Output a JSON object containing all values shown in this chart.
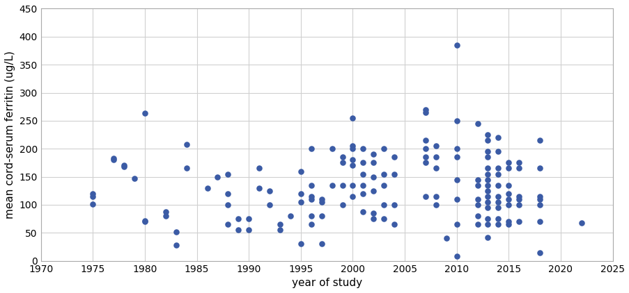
{
  "points": [
    [
      1975,
      120
    ],
    [
      1975,
      115
    ],
    [
      1975,
      101
    ],
    [
      1977,
      183
    ],
    [
      1977,
      180
    ],
    [
      1978,
      170
    ],
    [
      1978,
      168
    ],
    [
      1979,
      147
    ],
    [
      1980,
      263
    ],
    [
      1980,
      72
    ],
    [
      1980,
      70
    ],
    [
      1982,
      80
    ],
    [
      1982,
      88
    ],
    [
      1983,
      28
    ],
    [
      1983,
      52
    ],
    [
      1984,
      208
    ],
    [
      1984,
      165
    ],
    [
      1986,
      130
    ],
    [
      1987,
      150
    ],
    [
      1988,
      120
    ],
    [
      1988,
      100
    ],
    [
      1988,
      65
    ],
    [
      1988,
      155
    ],
    [
      1989,
      75
    ],
    [
      1989,
      55
    ],
    [
      1990,
      55
    ],
    [
      1990,
      75
    ],
    [
      1991,
      165
    ],
    [
      1991,
      130
    ],
    [
      1992,
      125
    ],
    [
      1992,
      100
    ],
    [
      1993,
      65
    ],
    [
      1993,
      55
    ],
    [
      1994,
      80
    ],
    [
      1995,
      160
    ],
    [
      1995,
      120
    ],
    [
      1995,
      105
    ],
    [
      1995,
      30
    ],
    [
      1996,
      200
    ],
    [
      1996,
      135
    ],
    [
      1996,
      115
    ],
    [
      1996,
      110
    ],
    [
      1996,
      80
    ],
    [
      1996,
      65
    ],
    [
      1997,
      110
    ],
    [
      1997,
      105
    ],
    [
      1997,
      80
    ],
    [
      1997,
      30
    ],
    [
      1998,
      200
    ],
    [
      1998,
      135
    ],
    [
      1999,
      185
    ],
    [
      1999,
      175
    ],
    [
      1999,
      135
    ],
    [
      1999,
      100
    ],
    [
      2000,
      255
    ],
    [
      2000,
      205
    ],
    [
      2000,
      200
    ],
    [
      2000,
      180
    ],
    [
      2000,
      170
    ],
    [
      2000,
      135
    ],
    [
      2000,
      115
    ],
    [
      2001,
      200
    ],
    [
      2001,
      175
    ],
    [
      2001,
      155
    ],
    [
      2001,
      135
    ],
    [
      2001,
      120
    ],
    [
      2001,
      88
    ],
    [
      2002,
      190
    ],
    [
      2002,
      175
    ],
    [
      2002,
      150
    ],
    [
      2002,
      125
    ],
    [
      2002,
      85
    ],
    [
      2002,
      75
    ],
    [
      2003,
      200
    ],
    [
      2003,
      155
    ],
    [
      2003,
      135
    ],
    [
      2003,
      100
    ],
    [
      2003,
      75
    ],
    [
      2004,
      185
    ],
    [
      2004,
      155
    ],
    [
      2004,
      100
    ],
    [
      2004,
      65
    ],
    [
      2007,
      270
    ],
    [
      2007,
      265
    ],
    [
      2007,
      215
    ],
    [
      2007,
      200
    ],
    [
      2007,
      185
    ],
    [
      2007,
      175
    ],
    [
      2007,
      115
    ],
    [
      2008,
      205
    ],
    [
      2008,
      185
    ],
    [
      2008,
      165
    ],
    [
      2008,
      115
    ],
    [
      2008,
      100
    ],
    [
      2009,
      40
    ],
    [
      2010,
      385
    ],
    [
      2010,
      250
    ],
    [
      2010,
      200
    ],
    [
      2010,
      185
    ],
    [
      2010,
      145
    ],
    [
      2010,
      110
    ],
    [
      2010,
      65
    ],
    [
      2010,
      8
    ],
    [
      2012,
      245
    ],
    [
      2012,
      145
    ],
    [
      2012,
      135
    ],
    [
      2012,
      110
    ],
    [
      2012,
      100
    ],
    [
      2012,
      80
    ],
    [
      2012,
      65
    ],
    [
      2013,
      225
    ],
    [
      2013,
      215
    ],
    [
      2013,
      195
    ],
    [
      2013,
      185
    ],
    [
      2013,
      165
    ],
    [
      2013,
      155
    ],
    [
      2013,
      145
    ],
    [
      2013,
      135
    ],
    [
      2013,
      125
    ],
    [
      2013,
      115
    ],
    [
      2013,
      105
    ],
    [
      2013,
      95
    ],
    [
      2013,
      75
    ],
    [
      2013,
      65
    ],
    [
      2013,
      42
    ],
    [
      2014,
      220
    ],
    [
      2014,
      195
    ],
    [
      2014,
      165
    ],
    [
      2014,
      155
    ],
    [
      2014,
      135
    ],
    [
      2014,
      115
    ],
    [
      2014,
      105
    ],
    [
      2014,
      95
    ],
    [
      2014,
      75
    ],
    [
      2014,
      65
    ],
    [
      2015,
      175
    ],
    [
      2015,
      165
    ],
    [
      2015,
      135
    ],
    [
      2015,
      120
    ],
    [
      2015,
      110
    ],
    [
      2015,
      100
    ],
    [
      2015,
      70
    ],
    [
      2015,
      65
    ],
    [
      2016,
      175
    ],
    [
      2016,
      165
    ],
    [
      2016,
      115
    ],
    [
      2016,
      110
    ],
    [
      2016,
      100
    ],
    [
      2016,
      70
    ],
    [
      2018,
      215
    ],
    [
      2018,
      165
    ],
    [
      2018,
      115
    ],
    [
      2018,
      110
    ],
    [
      2018,
      100
    ],
    [
      2018,
      70
    ],
    [
      2018,
      14
    ],
    [
      2022,
      68
    ]
  ],
  "color": "#3B5BA5",
  "marker_size": 38,
  "xlabel": "year of study",
  "ylabel": "mean cord-serum ferritin (ug/L)",
  "xlim": [
    1970,
    2025
  ],
  "ylim": [
    0,
    450
  ],
  "xticks": [
    1970,
    1975,
    1980,
    1985,
    1990,
    1995,
    2000,
    2005,
    2010,
    2015,
    2020,
    2025
  ],
  "yticks": [
    0,
    50,
    100,
    150,
    200,
    250,
    300,
    350,
    400,
    450
  ],
  "background_color": "#ffffff",
  "plot_bg_color": "#ffffff",
  "grid_color": "#d0d0d0"
}
